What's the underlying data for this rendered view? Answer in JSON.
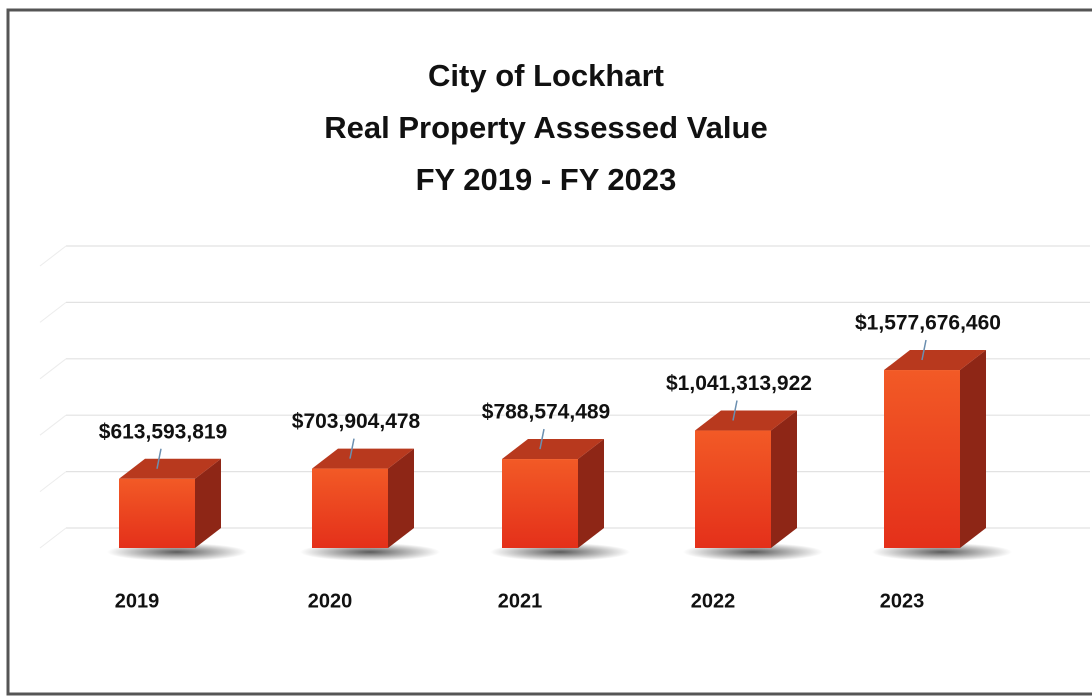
{
  "chart_data": {
    "type": "bar",
    "title": [
      "City of Lockhart",
      "Real Property Assessed Value",
      "FY 2019 - FY 2023"
    ],
    "categories": [
      "2019",
      "2020",
      "2021",
      "2022",
      "2023"
    ],
    "values": [
      613593819,
      703904478,
      788574489,
      1041313922,
      1577676460
    ],
    "value_labels": [
      "$613,593,819",
      "$703,904,478",
      "$788,574,489",
      "$1,041,313,922",
      "$1,577,676,460"
    ],
    "color": "#ee4a1f",
    "ylim": [
      0,
      2500000000
    ],
    "yticks": [
      0,
      500000000,
      1000000000,
      1500000000,
      2000000000,
      2500000000
    ],
    "grid": true
  }
}
